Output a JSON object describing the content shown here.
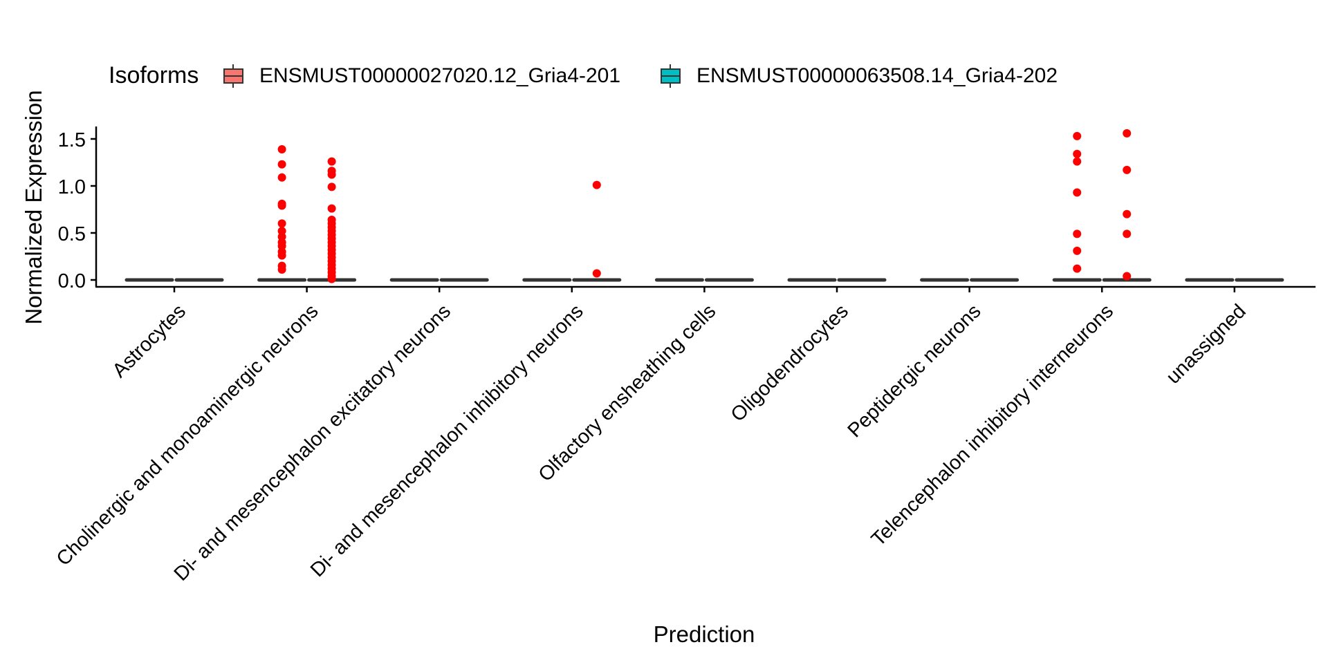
{
  "chart_data": {
    "type": "box",
    "xlabel": "Prediction",
    "ylabel": "Normalized Expression",
    "ylim": [
      -0.07,
      1.62
    ],
    "yticks": [
      "0.0",
      "0.5",
      "1.0",
      "1.5"
    ],
    "legend": {
      "title": "Isoforms",
      "position": "top",
      "entries": [
        {
          "name": "ENSMUST00000027020.12_Gria4-201",
          "color": "#F8766D"
        },
        {
          "name": "ENSMUST00000063508.14_Gria4-202",
          "color": "#00BFC4"
        }
      ]
    },
    "outlier_color": "#FF0000",
    "box_line_color": "#333333",
    "categories": [
      "Astrocytes",
      "Cholinergic and monoaminergic neurons",
      "Di- and mesencephalon excitatory neurons",
      "Di- and mesencephalon inhibitory neurons",
      "Olfactory ensheathing cells",
      "Oligodendrocytes",
      "Peptidergic neurons",
      "Telencephalon inhibitory interneurons",
      "unassigned"
    ],
    "series": [
      {
        "name": "ENSMUST00000027020.12_Gria4-201",
        "boxes": [
          {
            "median": 0,
            "q1": 0,
            "q3": 0,
            "outliers": []
          },
          {
            "median": 0,
            "q1": 0,
            "q3": 0,
            "outliers": [
              1.39,
              1.23,
              1.09,
              0.81,
              0.79,
              0.6,
              0.52,
              0.46,
              0.4,
              0.36,
              0.3,
              0.26,
              0.15,
              0.11
            ]
          },
          {
            "median": 0,
            "q1": 0,
            "q3": 0,
            "outliers": []
          },
          {
            "median": 0,
            "q1": 0,
            "q3": 0,
            "outliers": []
          },
          {
            "median": 0,
            "q1": 0,
            "q3": 0,
            "outliers": []
          },
          {
            "median": 0,
            "q1": 0,
            "q3": 0,
            "outliers": []
          },
          {
            "median": 0,
            "q1": 0,
            "q3": 0,
            "outliers": []
          },
          {
            "median": 0,
            "q1": 0,
            "q3": 0,
            "outliers": [
              1.53,
              1.34,
              1.26,
              0.93,
              0.49,
              0.31,
              0.12
            ]
          },
          {
            "median": 0,
            "q1": 0,
            "q3": 0,
            "outliers": []
          }
        ]
      },
      {
        "name": "ENSMUST00000063508.14_Gria4-202",
        "boxes": [
          {
            "median": 0,
            "q1": 0,
            "q3": 0,
            "outliers": []
          },
          {
            "median": 0,
            "q1": 0,
            "q3": 0,
            "outliers": [
              1.26,
              1.16,
              1.12,
              0.99,
              0.76,
              0.64,
              0.6,
              0.56,
              0.52,
              0.48,
              0.44,
              0.4,
              0.36,
              0.32,
              0.28,
              0.24,
              0.2,
              0.16,
              0.12,
              0.08,
              0.04,
              0.01
            ]
          },
          {
            "median": 0,
            "q1": 0,
            "q3": 0,
            "outliers": []
          },
          {
            "median": 0,
            "q1": 0,
            "q3": 0,
            "outliers": [
              1.01,
              0.07
            ]
          },
          {
            "median": 0,
            "q1": 0,
            "q3": 0,
            "outliers": []
          },
          {
            "median": 0,
            "q1": 0,
            "q3": 0,
            "outliers": []
          },
          {
            "median": 0,
            "q1": 0,
            "q3": 0,
            "outliers": []
          },
          {
            "median": 0,
            "q1": 0,
            "q3": 0,
            "outliers": [
              1.56,
              1.17,
              0.7,
              0.49,
              0.04
            ]
          },
          {
            "median": 0,
            "q1": 0,
            "q3": 0,
            "outliers": []
          }
        ]
      }
    ]
  }
}
